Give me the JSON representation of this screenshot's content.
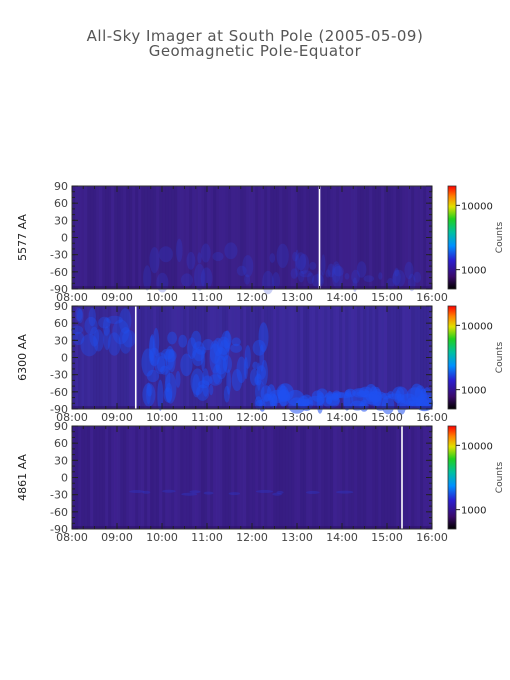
{
  "header": {
    "title": "All-Sky Imager at South Pole (2005-05-09)",
    "subtitle": "Geomagnetic Pole-Equator"
  },
  "chart_data": [
    {
      "type": "heatmap",
      "ylabel": "5577 AA",
      "x_ticks": [
        "08:00",
        "09:00",
        "10:00",
        "11:00",
        "12:00",
        "13:00",
        "14:00",
        "15:00",
        "16:00"
      ],
      "x_range": [
        "08:00",
        "16:00"
      ],
      "y_ticks": [
        90,
        60,
        30,
        0,
        -30,
        -60,
        -90
      ],
      "ylim": [
        -90,
        90
      ],
      "colorbar": {
        "label": "Counts",
        "ticks": [
          10000,
          1000
        ],
        "scale": "log"
      },
      "gap_line_time": "13:30",
      "colors": {
        "base": "#3a1f86",
        "enhanced": "#2a3fd8"
      }
    },
    {
      "type": "heatmap",
      "ylabel": "6300 AA",
      "x_ticks": [
        "08:00",
        "09:00",
        "10:00",
        "11:00",
        "12:00",
        "13:00",
        "14:00",
        "15:00",
        "16:00"
      ],
      "x_range": [
        "08:00",
        "16:00"
      ],
      "y_ticks": [
        90,
        60,
        30,
        0,
        -30,
        -60,
        -90
      ],
      "ylim": [
        -90,
        90
      ],
      "colorbar": {
        "label": "Counts",
        "ticks": [
          10000,
          1000
        ],
        "scale": "log"
      },
      "gap_line_time": "09:25",
      "colors": {
        "base": "#3b2a9a",
        "enhanced": "#1f50f0"
      }
    },
    {
      "type": "heatmap",
      "ylabel": "4861 AA",
      "x_ticks": [
        "08:00",
        "09:00",
        "10:00",
        "11:00",
        "12:00",
        "13:00",
        "14:00",
        "15:00",
        "16:00"
      ],
      "x_range": [
        "08:00",
        "16:00"
      ],
      "y_ticks": [
        90,
        60,
        30,
        0,
        -30,
        -60,
        -90
      ],
      "ylim": [
        -90,
        90
      ],
      "colorbar": {
        "label": "Counts",
        "ticks": [
          10000,
          1000
        ],
        "scale": "log"
      },
      "gap_line_time": "15:20",
      "colors": {
        "base": "#3a1f88",
        "enhanced": "#2e36c8"
      }
    }
  ]
}
